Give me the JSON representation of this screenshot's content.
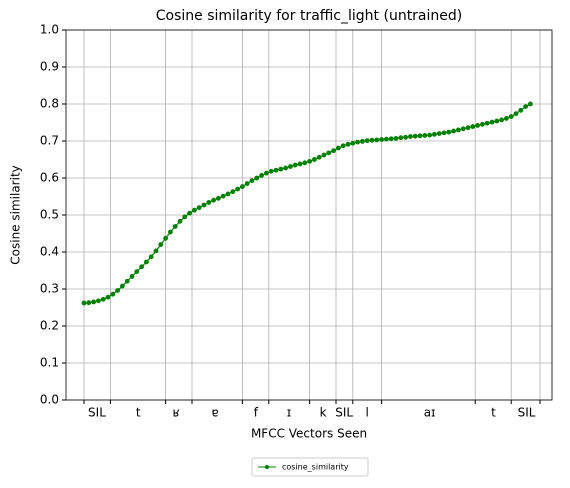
{
  "chart_data": {
    "type": "line",
    "title": "Cosine similarity for traffic_light (untrained)",
    "xlabel": "MFCC Vectors Seen",
    "ylabel": "Cosine similarity",
    "x": [
      0,
      1,
      2,
      3,
      4,
      5,
      6,
      7,
      8,
      9,
      10,
      11,
      12,
      13,
      14,
      15,
      16,
      17,
      18,
      19,
      20,
      21,
      22,
      23,
      24,
      25,
      26,
      27,
      28,
      29,
      30,
      31,
      32,
      33,
      34,
      35,
      36,
      37,
      38,
      39,
      40,
      41,
      42,
      43,
      44,
      45,
      46,
      47,
      48,
      49,
      50,
      51,
      52,
      53,
      54,
      55,
      56,
      57,
      58,
      59,
      60,
      61,
      62,
      63,
      64,
      65,
      66,
      67,
      68,
      69,
      70,
      71,
      72,
      73,
      74,
      75,
      76,
      77,
      78,
      79,
      80,
      81,
      82,
      83,
      84,
      85,
      86,
      87,
      88,
      89,
      90,
      91,
      92,
      93
    ],
    "series": [
      {
        "name": "cosine_similarity",
        "color": "#008000",
        "values": [
          0.262,
          0.263,
          0.265,
          0.268,
          0.272,
          0.278,
          0.286,
          0.296,
          0.308,
          0.321,
          0.334,
          0.347,
          0.36,
          0.373,
          0.387,
          0.403,
          0.42,
          0.437,
          0.454,
          0.469,
          0.483,
          0.495,
          0.505,
          0.513,
          0.52,
          0.527,
          0.534,
          0.54,
          0.545,
          0.551,
          0.557,
          0.563,
          0.57,
          0.577,
          0.585,
          0.593,
          0.6,
          0.607,
          0.613,
          0.618,
          0.621,
          0.624,
          0.627,
          0.631,
          0.635,
          0.638,
          0.641,
          0.645,
          0.65,
          0.656,
          0.662,
          0.668,
          0.674,
          0.681,
          0.687,
          0.691,
          0.694,
          0.697,
          0.699,
          0.701,
          0.702,
          0.703,
          0.704,
          0.705,
          0.706,
          0.707,
          0.709,
          0.71,
          0.712,
          0.713,
          0.714,
          0.715,
          0.716,
          0.718,
          0.72,
          0.722,
          0.724,
          0.727,
          0.73,
          0.733,
          0.736,
          0.739,
          0.742,
          0.745,
          0.748,
          0.751,
          0.754,
          0.757,
          0.761,
          0.766,
          0.774,
          0.783,
          0.793,
          0.8
        ]
      }
    ],
    "xlim": [
      -3.75,
      97.5
    ],
    "xticks": [
      0,
      5.5,
      17,
      22.5,
      33,
      38.5,
      47,
      52.5,
      56,
      62,
      81.5,
      89,
      95
    ],
    "phone_labels": [
      {
        "value": 2.7,
        "label": "SIL"
      },
      {
        "value": 11.3,
        "label": "t"
      },
      {
        "value": 19.2,
        "label": "ʁ"
      },
      {
        "value": 27.3,
        "label": "ɐ"
      },
      {
        "value": 35.8,
        "label": "f"
      },
      {
        "value": 42.7,
        "label": "ɪ"
      },
      {
        "value": 49.8,
        "label": "k"
      },
      {
        "value": 54.2,
        "label": "SIL"
      },
      {
        "value": 59,
        "label": "l"
      },
      {
        "value": 72,
        "label": "aɪ"
      },
      {
        "value": 85.3,
        "label": "t"
      },
      {
        "value": 92.2,
        "label": "SIL"
      }
    ],
    "ylim": [
      0,
      1
    ],
    "yticks": [
      {
        "value": 0,
        "label": "0.0"
      },
      {
        "value": 0.1,
        "label": "0.1"
      },
      {
        "value": 0.2,
        "label": "0.2"
      },
      {
        "value": 0.3,
        "label": "0.3"
      },
      {
        "value": 0.4,
        "label": "0.4"
      },
      {
        "value": 0.5,
        "label": "0.5"
      },
      {
        "value": 0.6,
        "label": "0.6"
      },
      {
        "value": 0.7,
        "label": "0.7"
      },
      {
        "value": 0.8,
        "label": "0.8"
      },
      {
        "value": 0.9,
        "label": "0.9"
      },
      {
        "value": 1,
        "label": "1.0"
      }
    ],
    "grid": true,
    "legend": "bottom"
  }
}
